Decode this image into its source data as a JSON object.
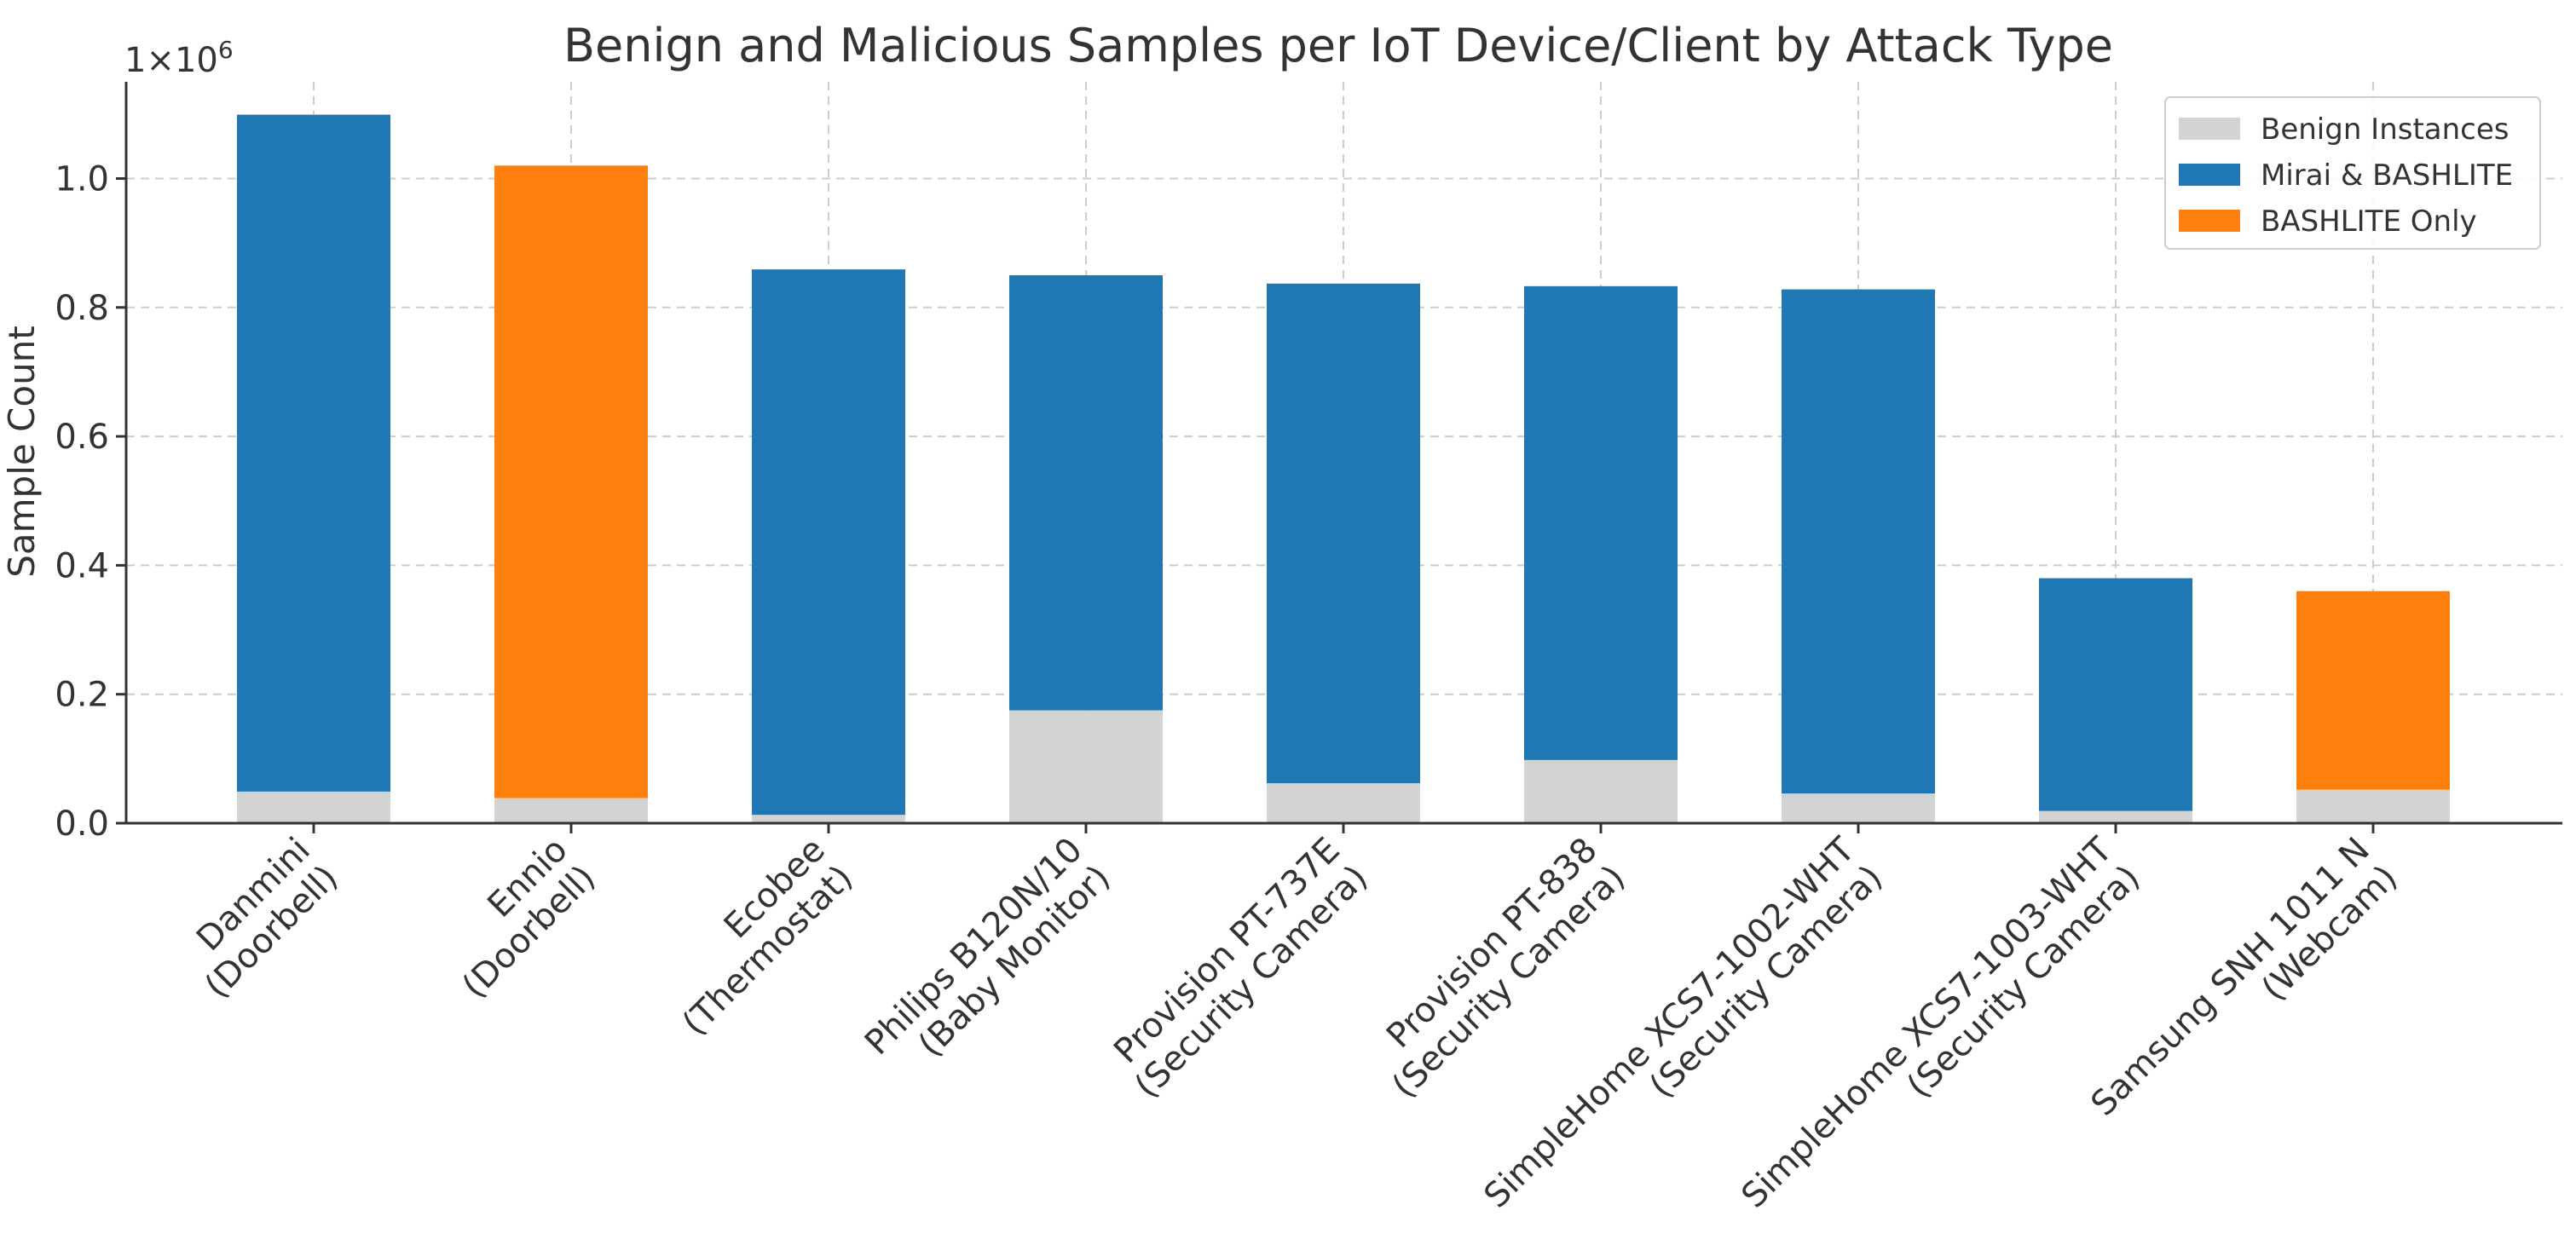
{
  "chart_data": {
    "type": "bar",
    "stacked": true,
    "title": "Benign and Malicious Samples per IoT Device/Client by Attack Type",
    "xlabel": "",
    "ylabel": "Sample Count",
    "y_multiplier_label": "1×10",
    "y_multiplier_exponent": "6",
    "ylim": [
      0,
      1150000
    ],
    "yticks": [
      0,
      200000,
      400000,
      600000,
      800000,
      1000000
    ],
    "ytick_labels": [
      "0.0",
      "0.2",
      "0.4",
      "0.6",
      "0.8",
      "1.0"
    ],
    "grid": true,
    "legend_position": "top-right",
    "categories": [
      [
        "Danmini",
        "(Doorbell)"
      ],
      [
        "Ennio",
        "(Doorbell)"
      ],
      [
        "Ecobee",
        "(Thermostat)"
      ],
      [
        "Philips B120N/10",
        "(Baby Monitor)"
      ],
      [
        "Provision PT-737E",
        "(Security Camera)"
      ],
      [
        "Provision PT-838",
        "(Security Camera)"
      ],
      [
        "SimpleHome XCS7-1002-WHT",
        "(Security Camera)"
      ],
      [
        "SimpleHome XCS7-1003-WHT",
        "(Security Camera)"
      ],
      [
        "Samsung SNH 1011 N",
        "(Webcam)"
      ]
    ],
    "series": [
      {
        "name": "Benign Instances",
        "color": "#d3d3d3",
        "values": [
          49000,
          39000,
          13000,
          175000,
          62000,
          98000,
          46000,
          19000,
          52000
        ]
      },
      {
        "name": "Mirai & BASHLITE",
        "color": "#1f77b4",
        "values": [
          1050000,
          0,
          846000,
          675000,
          775000,
          735000,
          782000,
          361000,
          0
        ]
      },
      {
        "name": "BASHLITE Only",
        "color": "#ff7f0e",
        "values": [
          0,
          981000,
          0,
          0,
          0,
          0,
          0,
          0,
          308000
        ]
      }
    ]
  }
}
